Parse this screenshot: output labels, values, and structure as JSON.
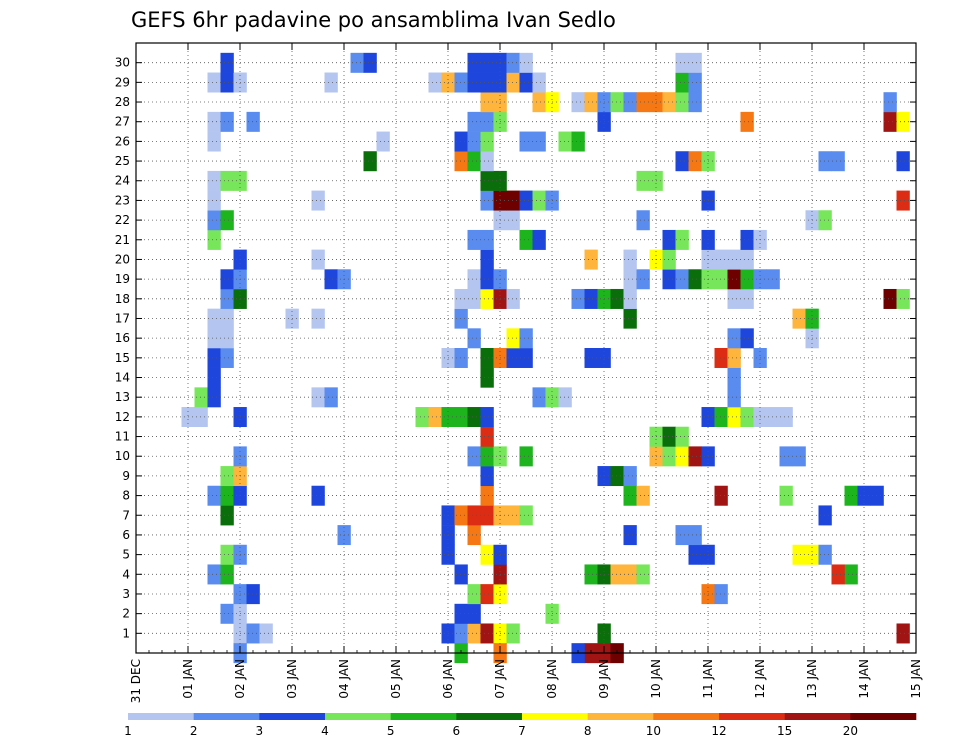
{
  "chart_data": {
    "type": "heatmap",
    "title": "GEFS 6hr padavine po ansamblima Ivan Sedlo",
    "xlabel": "",
    "ylabel": "",
    "x_ticks": [
      "31 DEC",
      "01 JAN",
      "02 JAN",
      "03 JAN",
      "04 JAN",
      "05 JAN",
      "06 JAN",
      "07 JAN",
      "08 JAN",
      "09 JAN",
      "10 JAN",
      "11 JAN",
      "12 JAN",
      "13 JAN",
      "14 JAN",
      "15 JAN"
    ],
    "y_ticks": [
      "1",
      "2",
      "3",
      "4",
      "5",
      "6",
      "7",
      "8",
      "9",
      "10",
      "11",
      "12",
      "13",
      "14",
      "15",
      "16",
      "17",
      "18",
      "19",
      "20",
      "21",
      "22",
      "23",
      "24",
      "25",
      "26",
      "27",
      "28",
      "29",
      "30"
    ],
    "time_step_hours": 6,
    "grid": true,
    "colorbar": {
      "labels": [
        "1",
        "2",
        "3",
        "4",
        "5",
        "6",
        "7",
        "8",
        "10",
        "12",
        "15",
        "20"
      ],
      "colors": [
        "#b4c6f0",
        "#5a8cf0",
        "#1e46dc",
        "#78e65a",
        "#1eb41e",
        "#0a6e0a",
        "#ffff00",
        "#ffb43c",
        "#f57814",
        "#dc2d14",
        "#a01414",
        "#6e0000"
      ]
    },
    "cells": [
      [
        1,
        "02 JAN 00",
        0
      ],
      [
        1,
        "02 JAN 06",
        1
      ],
      [
        1,
        "02 JAN 12",
        0
      ],
      [
        1,
        "06 JAN 00",
        2
      ],
      [
        1,
        "06 JAN 06",
        1
      ],
      [
        1,
        "06 JAN 12",
        7
      ],
      [
        1,
        "06 JAN 18",
        10
      ],
      [
        1,
        "07 JAN 00",
        6
      ],
      [
        1,
        "07 JAN 06",
        3
      ],
      [
        1,
        "09 JAN 00",
        5
      ],
      [
        1,
        "14 JAN 18",
        10
      ],
      [
        2,
        "01 JAN 18",
        1
      ],
      [
        2,
        "02 JAN 00",
        0
      ],
      [
        2,
        "06 JAN 06",
        2
      ],
      [
        2,
        "06 JAN 12",
        2
      ],
      [
        2,
        "08 JAN 00",
        3
      ],
      [
        3,
        "02 JAN 00",
        1
      ],
      [
        3,
        "02 JAN 06",
        2
      ],
      [
        3,
        "06 JAN 12",
        3
      ],
      [
        3,
        "06 JAN 18",
        9
      ],
      [
        3,
        "07 JAN 00",
        6
      ],
      [
        3,
        "11 JAN 00",
        8
      ],
      [
        3,
        "11 JAN 06",
        1
      ],
      [
        4,
        "01 JAN 12",
        1
      ],
      [
        4,
        "01 JAN 18",
        4
      ],
      [
        4,
        "06 JAN 06",
        2
      ],
      [
        4,
        "07 JAN 00",
        10
      ],
      [
        4,
        "08 JAN 18",
        4
      ],
      [
        4,
        "09 JAN 00",
        5
      ],
      [
        4,
        "09 JAN 06",
        7
      ],
      [
        4,
        "09 JAN 12",
        7
      ],
      [
        4,
        "09 JAN 18",
        3
      ],
      [
        4,
        "13 JAN 18",
        4
      ],
      [
        4,
        "13 JAN 12",
        9
      ],
      [
        5,
        "01 JAN 18",
        3
      ],
      [
        5,
        "02 JAN 00",
        1
      ],
      [
        5,
        "06 JAN 00",
        2
      ],
      [
        5,
        "06 JAN 18",
        6
      ],
      [
        5,
        "07 JAN 00",
        2
      ],
      [
        5,
        "10 JAN 18",
        2
      ],
      [
        5,
        "11 JAN 00",
        2
      ],
      [
        5,
        "12 JAN 18",
        6
      ],
      [
        5,
        "13 JAN 00",
        6
      ],
      [
        5,
        "13 JAN 06",
        1
      ],
      [
        6,
        "04 JAN 00",
        1
      ],
      [
        6,
        "06 JAN 00",
        2
      ],
      [
        6,
        "06 JAN 12",
        8
      ],
      [
        6,
        "09 JAN 12",
        2
      ],
      [
        6,
        "10 JAN 12",
        1
      ],
      [
        6,
        "10 JAN 18",
        1
      ],
      [
        7,
        "01 JAN 18",
        5
      ],
      [
        7,
        "06 JAN 00",
        2
      ],
      [
        7,
        "06 JAN 06",
        8
      ],
      [
        7,
        "06 JAN 12",
        9
      ],
      [
        7,
        "06 JAN 18",
        9
      ],
      [
        7,
        "07 JAN 00",
        7
      ],
      [
        7,
        "07 JAN 06",
        7
      ],
      [
        7,
        "07 JAN 12",
        3
      ],
      [
        7,
        "13 JAN 06",
        2
      ],
      [
        8,
        "01 JAN 12",
        1
      ],
      [
        8,
        "01 JAN 18",
        4
      ],
      [
        8,
        "02 JAN 00",
        2
      ],
      [
        8,
        "03 JAN 12",
        2
      ],
      [
        8,
        "06 JAN 18",
        8
      ],
      [
        8,
        "09 JAN 12",
        4
      ],
      [
        8,
        "09 JAN 18",
        7
      ],
      [
        8,
        "11 JAN 06",
        10
      ],
      [
        8,
        "12 JAN 12",
        3
      ],
      [
        8,
        "13 JAN 18",
        4
      ],
      [
        8,
        "14 JAN 00",
        2
      ],
      [
        8,
        "14 JAN 06",
        2
      ],
      [
        9,
        "01 JAN 18",
        3
      ],
      [
        9,
        "02 JAN 00",
        7
      ],
      [
        9,
        "06 JAN 18",
        2
      ],
      [
        9,
        "09 JAN 00",
        2
      ],
      [
        9,
        "09 JAN 06",
        5
      ],
      [
        9,
        "09 JAN 12",
        1
      ],
      [
        10,
        "02 JAN 00",
        1
      ],
      [
        10,
        "06 JAN 12",
        1
      ],
      [
        10,
        "06 JAN 18",
        4
      ],
      [
        10,
        "07 JAN 00",
        3
      ],
      [
        10,
        "07 JAN 12",
        4
      ],
      [
        10,
        "10 JAN 00",
        7
      ],
      [
        10,
        "10 JAN 06",
        3
      ],
      [
        10,
        "10 JAN 12",
        6
      ],
      [
        10,
        "10 JAN 18",
        10
      ],
      [
        10,
        "11 JAN 00",
        2
      ],
      [
        10,
        "12 JAN 12",
        1
      ],
      [
        10,
        "12 JAN 18",
        1
      ],
      [
        11,
        "06 JAN 18",
        9
      ],
      [
        11,
        "10 JAN 00",
        3
      ],
      [
        11,
        "10 JAN 06",
        5
      ],
      [
        11,
        "10 JAN 12",
        3
      ],
      [
        12,
        "01 JAN 00",
        0
      ],
      [
        12,
        "01 JAN 06",
        0
      ],
      [
        12,
        "02 JAN 00",
        2
      ],
      [
        12,
        "05 JAN 12",
        3
      ],
      [
        12,
        "05 JAN 18",
        7
      ],
      [
        12,
        "06 JAN 00",
        4
      ],
      [
        12,
        "06 JAN 06",
        4
      ],
      [
        12,
        "06 JAN 12",
        5
      ],
      [
        12,
        "06 JAN 18",
        2
      ],
      [
        12,
        "11 JAN 00",
        2
      ],
      [
        12,
        "11 JAN 06",
        4
      ],
      [
        12,
        "11 JAN 12",
        6
      ],
      [
        12,
        "11 JAN 18",
        3
      ],
      [
        12,
        "12 JAN 00",
        0
      ],
      [
        12,
        "12 JAN 06",
        0
      ],
      [
        12,
        "12 JAN 12",
        0
      ],
      [
        13,
        "01 JAN 06",
        3
      ],
      [
        13,
        "01 JAN 12",
        2
      ],
      [
        13,
        "03 JAN 12",
        0
      ],
      [
        13,
        "03 JAN 18",
        1
      ],
      [
        13,
        "07 JAN 18",
        1
      ],
      [
        13,
        "08 JAN 00",
        3
      ],
      [
        13,
        "08 JAN 06",
        0
      ],
      [
        13,
        "11 JAN 12",
        1
      ],
      [
        14,
        "01 JAN 12",
        2
      ],
      [
        14,
        "06 JAN 18",
        5
      ],
      [
        14,
        "11 JAN 12",
        1
      ],
      [
        15,
        "01 JAN 12",
        2
      ],
      [
        15,
        "01 JAN 18",
        1
      ],
      [
        15,
        "06 JAN 00",
        0
      ],
      [
        15,
        "06 JAN 06",
        1
      ],
      [
        15,
        "06 JAN 18",
        5
      ],
      [
        15,
        "07 JAN 00",
        8
      ],
      [
        15,
        "07 JAN 06",
        2
      ],
      [
        15,
        "07 JAN 12",
        2
      ],
      [
        15,
        "08 JAN 18",
        2
      ],
      [
        15,
        "09 JAN 00",
        2
      ],
      [
        15,
        "11 JAN 06",
        9
      ],
      [
        15,
        "11 JAN 12",
        7
      ],
      [
        15,
        "12 JAN 00",
        1
      ],
      [
        16,
        "01 JAN 12",
        0
      ],
      [
        16,
        "01 JAN 18",
        0
      ],
      [
        16,
        "06 JAN 12",
        1
      ],
      [
        16,
        "07 JAN 06",
        6
      ],
      [
        16,
        "07 JAN 12",
        1
      ],
      [
        16,
        "11 JAN 12",
        1
      ],
      [
        16,
        "11 JAN 18",
        2
      ],
      [
        16,
        "13 JAN 00",
        0
      ],
      [
        17,
        "01 JAN 12",
        0
      ],
      [
        17,
        "01 JAN 18",
        0
      ],
      [
        17,
        "03 JAN 00",
        0
      ],
      [
        17,
        "03 JAN 12",
        0
      ],
      [
        17,
        "06 JAN 06",
        1
      ],
      [
        17,
        "09 JAN 12",
        5
      ],
      [
        17,
        "12 JAN 18",
        7
      ],
      [
        17,
        "13 JAN 00",
        4
      ],
      [
        18,
        "01 JAN 18",
        1
      ],
      [
        18,
        "02 JAN 00",
        5
      ],
      [
        18,
        "06 JAN 06",
        0
      ],
      [
        18,
        "06 JAN 12",
        0
      ],
      [
        18,
        "06 JAN 18",
        6
      ],
      [
        18,
        "07 JAN 00",
        10
      ],
      [
        18,
        "07 JAN 06",
        0
      ],
      [
        18,
        "08 JAN 12",
        1
      ],
      [
        18,
        "08 JAN 18",
        2
      ],
      [
        18,
        "09 JAN 00",
        4
      ],
      [
        18,
        "09 JAN 06",
        5
      ],
      [
        18,
        "09 JAN 12",
        0
      ],
      [
        18,
        "11 JAN 12",
        0
      ],
      [
        18,
        "11 JAN 18",
        0
      ],
      [
        18,
        "14 JAN 12",
        11
      ],
      [
        18,
        "14 JAN 18",
        3
      ],
      [
        19,
        "01 JAN 18",
        2
      ],
      [
        19,
        "02 JAN 00",
        1
      ],
      [
        19,
        "03 JAN 18",
        2
      ],
      [
        19,
        "04 JAN 00",
        1
      ],
      [
        19,
        "06 JAN 12",
        0
      ],
      [
        19,
        "06 JAN 18",
        2
      ],
      [
        19,
        "07 JAN 00",
        1
      ],
      [
        19,
        "09 JAN 12",
        0
      ],
      [
        19,
        "09 JAN 18",
        1
      ],
      [
        19,
        "10 JAN 06",
        2
      ],
      [
        19,
        "10 JAN 12",
        1
      ],
      [
        19,
        "10 JAN 18",
        5
      ],
      [
        19,
        "11 JAN 00",
        3
      ],
      [
        19,
        "11 JAN 06",
        3
      ],
      [
        19,
        "11 JAN 12",
        11
      ],
      [
        19,
        "11 JAN 18",
        4
      ],
      [
        19,
        "12 JAN 00",
        1
      ],
      [
        19,
        "12 JAN 06",
        1
      ],
      [
        20,
        "02 JAN 00",
        2
      ],
      [
        20,
        "03 JAN 12",
        0
      ],
      [
        20,
        "06 JAN 18",
        2
      ],
      [
        20,
        "08 JAN 18",
        7
      ],
      [
        20,
        "09 JAN 12",
        0
      ],
      [
        20,
        "10 JAN 00",
        6
      ],
      [
        20,
        "10 JAN 06",
        3
      ],
      [
        20,
        "11 JAN 00",
        0
      ],
      [
        20,
        "11 JAN 06",
        0
      ],
      [
        20,
        "11 JAN 12",
        0
      ],
      [
        20,
        "11 JAN 18",
        0
      ],
      [
        21,
        "01 JAN 12",
        3
      ],
      [
        21,
        "06 JAN 12",
        1
      ],
      [
        21,
        "06 JAN 18",
        1
      ],
      [
        21,
        "07 JAN 12",
        4
      ],
      [
        21,
        "07 JAN 18",
        2
      ],
      [
        21,
        "10 JAN 06",
        2
      ],
      [
        21,
        "10 JAN 12",
        3
      ],
      [
        21,
        "11 JAN 00",
        2
      ],
      [
        21,
        "11 JAN 18",
        2
      ],
      [
        21,
        "12 JAN 00",
        0
      ],
      [
        22,
        "01 JAN 12",
        1
      ],
      [
        22,
        "01 JAN 18",
        4
      ],
      [
        22,
        "07 JAN 00",
        0
      ],
      [
        22,
        "07 JAN 06",
        0
      ],
      [
        22,
        "09 JAN 18",
        1
      ],
      [
        22,
        "13 JAN 00",
        0
      ],
      [
        22,
        "13 JAN 06",
        3
      ],
      [
        23,
        "01 JAN 12",
        0
      ],
      [
        23,
        "03 JAN 12",
        0
      ],
      [
        23,
        "06 JAN 18",
        1
      ],
      [
        23,
        "07 JAN 00",
        11
      ],
      [
        23,
        "07 JAN 06",
        11
      ],
      [
        23,
        "07 JAN 12",
        2
      ],
      [
        23,
        "07 JAN 18",
        3
      ],
      [
        23,
        "08 JAN 00",
        1
      ],
      [
        23,
        "11 JAN 00",
        2
      ],
      [
        23,
        "14 JAN 18",
        9
      ],
      [
        24,
        "01 JAN 12",
        0
      ],
      [
        24,
        "01 JAN 18",
        3
      ],
      [
        24,
        "02 JAN 00",
        3
      ],
      [
        24,
        "06 JAN 18",
        5
      ],
      [
        24,
        "07 JAN 00",
        5
      ],
      [
        24,
        "09 JAN 18",
        3
      ],
      [
        24,
        "10 JAN 00",
        3
      ],
      [
        25,
        "04 JAN 12",
        5
      ],
      [
        25,
        "06 JAN 06",
        8
      ],
      [
        25,
        "06 JAN 12",
        4
      ],
      [
        25,
        "06 JAN 18",
        0
      ],
      [
        25,
        "10 JAN 12",
        2
      ],
      [
        25,
        "10 JAN 18",
        8
      ],
      [
        25,
        "11 JAN 00",
        3
      ],
      [
        25,
        "13 JAN 06",
        1
      ],
      [
        25,
        "13 JAN 12",
        1
      ],
      [
        25,
        "14 JAN 18",
        2
      ],
      [
        26,
        "01 JAN 12",
        0
      ],
      [
        26,
        "04 JAN 18",
        0
      ],
      [
        26,
        "06 JAN 06",
        2
      ],
      [
        26,
        "06 JAN 12",
        1
      ],
      [
        26,
        "06 JAN 18",
        3
      ],
      [
        26,
        "07 JAN 12",
        1
      ],
      [
        26,
        "07 JAN 18",
        1
      ],
      [
        26,
        "08 JAN 06",
        3
      ],
      [
        26,
        "08 JAN 12",
        4
      ],
      [
        27,
        "01 JAN 12",
        0
      ],
      [
        27,
        "01 JAN 18",
        1
      ],
      [
        27,
        "02 JAN 06",
        1
      ],
      [
        27,
        "06 JAN 12",
        1
      ],
      [
        27,
        "06 JAN 18",
        1
      ],
      [
        27,
        "07 JAN 00",
        3
      ],
      [
        27,
        "09 JAN 00",
        2
      ],
      [
        27,
        "11 JAN 18",
        8
      ],
      [
        27,
        "14 JAN 12",
        10
      ],
      [
        27,
        "14 JAN 18",
        6
      ],
      [
        28,
        "06 JAN 18",
        7
      ],
      [
        28,
        "07 JAN 00",
        7
      ],
      [
        28,
        "07 JAN 18",
        7
      ],
      [
        28,
        "08 JAN 00",
        6
      ],
      [
        28,
        "08 JAN 12",
        0
      ],
      [
        28,
        "08 JAN 18",
        7
      ],
      [
        28,
        "09 JAN 00",
        1
      ],
      [
        28,
        "09 JAN 06",
        3
      ],
      [
        28,
        "09 JAN 12",
        1
      ],
      [
        28,
        "09 JAN 18",
        8
      ],
      [
        28,
        "10 JAN 00",
        8
      ],
      [
        28,
        "10 JAN 06",
        7
      ],
      [
        28,
        "10 JAN 12",
        3
      ],
      [
        28,
        "10 JAN 18",
        1
      ],
      [
        28,
        "14 JAN 12",
        1
      ],
      [
        29,
        "01 JAN 12",
        0
      ],
      [
        29,
        "01 JAN 18",
        2
      ],
      [
        29,
        "02 JAN 00",
        0
      ],
      [
        29,
        "03 JAN 18",
        0
      ],
      [
        29,
        "05 JAN 18",
        0
      ],
      [
        29,
        "06 JAN 00",
        7
      ],
      [
        29,
        "06 JAN 06",
        1
      ],
      [
        29,
        "06 JAN 12",
        2
      ],
      [
        29,
        "06 JAN 18",
        2
      ],
      [
        29,
        "07 JAN 00",
        2
      ],
      [
        29,
        "07 JAN 06",
        7
      ],
      [
        29,
        "07 JAN 12",
        2
      ],
      [
        29,
        "07 JAN 18",
        0
      ],
      [
        29,
        "10 JAN 12",
        4
      ],
      [
        29,
        "10 JAN 18",
        1
      ],
      [
        30,
        "01 JAN 18",
        2
      ],
      [
        30,
        "04 JAN 06",
        1
      ],
      [
        30,
        "04 JAN 12",
        2
      ],
      [
        30,
        "06 JAN 12",
        2
      ],
      [
        30,
        "06 JAN 18",
        2
      ],
      [
        30,
        "07 JAN 00",
        2
      ],
      [
        30,
        "07 JAN 06",
        1
      ],
      [
        30,
        "07 JAN 12",
        0
      ],
      [
        30,
        "10 JAN 12",
        0
      ],
      [
        30,
        "10 JAN 18",
        0
      ],
      [
        0,
        "02 JAN 00",
        1
      ],
      [
        0,
        "06 JAN 06",
        4
      ],
      [
        0,
        "07 JAN 00",
        8
      ],
      [
        0,
        "08 JAN 18",
        10
      ],
      [
        0,
        "09 JAN 00",
        10
      ],
      [
        0,
        "09 JAN 06",
        11
      ],
      [
        0,
        "08 JAN 12",
        2
      ]
    ]
  }
}
